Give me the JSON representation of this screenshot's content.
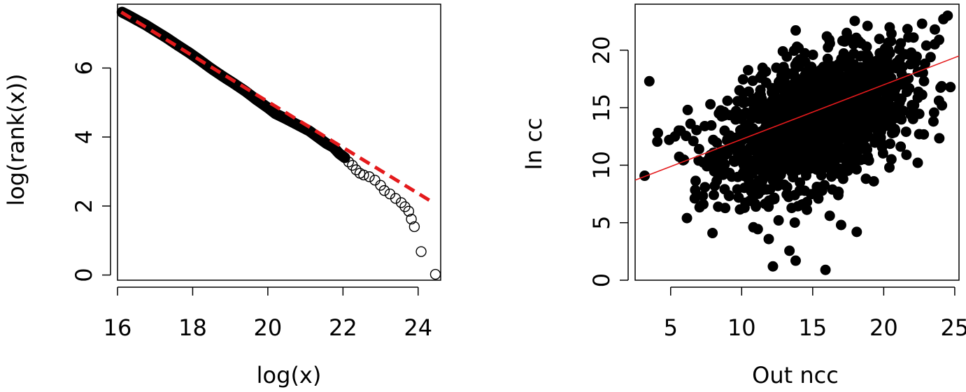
{
  "chart_data": [
    {
      "type": "scatter",
      "title": "",
      "xlabel": "log(x)",
      "ylabel": "log(rank(x))",
      "xlim": [
        16.0,
        24.6
      ],
      "ylim": [
        -0.15,
        7.85
      ],
      "xticks": [
        16,
        18,
        20,
        22,
        24
      ],
      "yticks": [
        0,
        2,
        4,
        6
      ],
      "xtick_labels": [
        "16",
        "18",
        "20",
        "22",
        "24"
      ],
      "ytick_labels": [
        "0",
        "2",
        "4",
        "6"
      ],
      "grid": false,
      "legend": "none",
      "points": {
        "marker": "open-circle",
        "color": "#000000",
        "x": [
          16.12,
          16.3,
          16.5,
          16.75,
          17.0,
          17.3,
          17.6,
          17.9,
          18.2,
          18.5,
          18.8,
          19.1,
          19.4,
          19.7,
          20.0,
          20.2,
          20.5,
          20.8,
          21.1,
          21.35,
          21.55,
          21.75,
          21.9,
          22.05,
          22.15,
          22.25,
          22.35,
          22.45,
          22.55,
          22.7,
          22.85,
          23.0,
          23.1,
          23.25,
          23.4,
          23.55,
          23.65,
          23.75,
          23.82,
          23.9,
          24.08,
          24.46
        ],
        "y": [
          7.62,
          7.52,
          7.4,
          7.25,
          7.08,
          6.88,
          6.66,
          6.45,
          6.22,
          5.98,
          5.76,
          5.55,
          5.33,
          5.08,
          4.85,
          4.68,
          4.52,
          4.35,
          4.18,
          3.98,
          3.82,
          3.7,
          3.52,
          3.4,
          3.28,
          3.18,
          3.05,
          2.95,
          2.9,
          2.85,
          2.75,
          2.6,
          2.45,
          2.35,
          2.22,
          2.1,
          1.98,
          1.85,
          1.62,
          1.4,
          0.68,
          0.02
        ]
      },
      "fit_line": {
        "style": "dashed",
        "color": "#e41a1c",
        "x": [
          16.1,
          24.4
        ],
        "y": [
          7.62,
          2.1
        ]
      }
    },
    {
      "type": "scatter",
      "title": "",
      "xlabel": "Out ncc",
      "ylabel": "In cc",
      "xlim": [
        2.5,
        25.3
      ],
      "ylim": [
        0,
        24
      ],
      "xticks": [
        5,
        10,
        15,
        20,
        25
      ],
      "yticks": [
        0,
        5,
        10,
        15,
        20
      ],
      "xtick_labels": [
        "5",
        "10",
        "15",
        "20",
        "25"
      ],
      "ytick_labels": [
        "0",
        "5",
        "10",
        "15",
        "20"
      ],
      "grid": false,
      "legend": "none",
      "points": {
        "marker": "filled-circle",
        "color": "#000000",
        "x": [
          3.5,
          4.1,
          4.9,
          5.3,
          5.7,
          6.2,
          6.4,
          6.6,
          7.0,
          7.4,
          7.8,
          8.0,
          8.4,
          8.8,
          9.0,
          9.3,
          9.6,
          10.0,
          10.3,
          10.5,
          10.8,
          11.1,
          11.3,
          11.6,
          11.9,
          12.1,
          12.3,
          12.6,
          12.8,
          13.1,
          13.3,
          13.6,
          13.9,
          14.1,
          14.4,
          14.7,
          15.0,
          15.2,
          15.5,
          15.8,
          16.1,
          16.4,
          16.7,
          17.0,
          17.3,
          17.6,
          17.9,
          18.2,
          18.5,
          18.8,
          19.1,
          19.4,
          19.7,
          20.0,
          20.3,
          20.6,
          20.9,
          21.2,
          21.5,
          21.8,
          22.1,
          22.4,
          22.7,
          23.0,
          23.3,
          23.6,
          23.9,
          24.2,
          24.5,
          12.2,
          13.8,
          15.9,
          17.0,
          18.1,
          12.6,
          14.3,
          16.2,
          13.2,
          11.0,
          10.2,
          7.3,
          9.7,
          19.3,
          20.4,
          21.6,
          22.5,
          23.5,
          24.1,
          16.8,
          15.4,
          14.6,
          13.0,
          12.0,
          11.5,
          10.7,
          9.5,
          8.6,
          14.9,
          15.7,
          16.5,
          17.8,
          18.7,
          19.6,
          20.8,
          21.9,
          14.0,
          16.0,
          18.4,
          12.9,
          17.4
        ],
        "y": [
          17.3,
          12.8,
          12.2,
          12.5,
          13.0,
          14.8,
          13.6,
          12.1,
          11.4,
          13.4,
          15.3,
          12.2,
          14.5,
          13.0,
          15.6,
          9.0,
          11.6,
          14.0,
          12.4,
          16.4,
          13.2,
          10.1,
          17.6,
          12.8,
          15.0,
          11.3,
          9.5,
          16.8,
          13.6,
          18.1,
          11.6,
          14.2,
          12.5,
          19.2,
          15.3,
          12.0,
          16.7,
          13.8,
          17.5,
          14.4,
          12.8,
          18.6,
          15.2,
          16.9,
          13.5,
          19.4,
          15.9,
          17.8,
          14.6,
          20.3,
          16.5,
          18.4,
          15.1,
          19.8,
          17.6,
          16.2,
          18.9,
          20.6,
          17.4,
          19.6,
          21.1,
          18.1,
          22.3,
          20.4,
          19.4,
          21.8,
          20.9,
          22.7,
          23.0,
          1.2,
          1.7,
          0.9,
          4.8,
          4.2,
          5.2,
          6.6,
          5.6,
          8.1,
          6.4,
          6.3,
          6.6,
          7.9,
          8.6,
          9.8,
          10.9,
          12.7,
          13.8,
          15.2,
          7.4,
          7.1,
          6.8,
          8.3,
          7.9,
          9.0,
          7.7,
          10.3,
          11.3,
          11.8,
          12.2,
          10.9,
          10.1,
          11.6,
          12.4,
          13.0,
          14.4,
          20.2,
          21.2,
          20.6,
          19.9,
          21.5
        ]
      },
      "dense_cluster": {
        "description_values": {
          "x_center": 15.2,
          "y_center": 13.8,
          "x_spread": 3.2,
          "y_spread": 2.6,
          "count": 1500
        }
      },
      "fit_line": {
        "style": "solid",
        "color": "#e41a1c",
        "x": [
          2.5,
          25.3
        ],
        "y": [
          8.7,
          19.5
        ]
      }
    }
  ]
}
